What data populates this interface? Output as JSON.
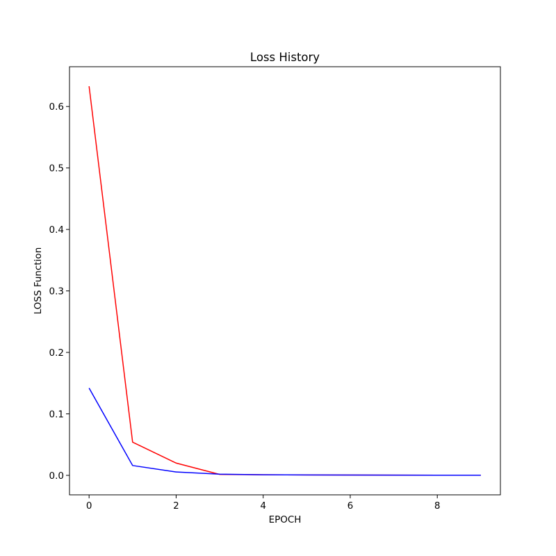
{
  "chart_data": {
    "type": "line",
    "title": "Loss History",
    "x_label": "EPOCH",
    "y_label": "LOSS Function",
    "x": [
      0,
      1,
      2,
      3,
      4,
      5,
      6,
      7,
      8,
      9
    ],
    "series": [
      {
        "color": "#ff0000",
        "values": [
          0.633,
          0.054,
          0.02,
          0.0015,
          0.001,
          0.0007,
          0.0005,
          0.0004,
          0.0003,
          0.0002
        ]
      },
      {
        "color": "#0000ff",
        "values": [
          0.142,
          0.016,
          0.0055,
          0.002,
          0.001,
          0.0007,
          0.0005,
          0.0004,
          0.0003,
          0.0002
        ]
      }
    ],
    "xlim": [
      -0.45,
      9.45
    ],
    "ylim": [
      -0.0317,
      0.6647
    ],
    "xticks": [
      0,
      2,
      4,
      6,
      8
    ],
    "yticks": [
      {
        "value": 0,
        "label": "0.0"
      },
      0.1,
      0.2,
      0.3,
      0.4,
      0.5,
      0.6
    ],
    "grid": false
  }
}
